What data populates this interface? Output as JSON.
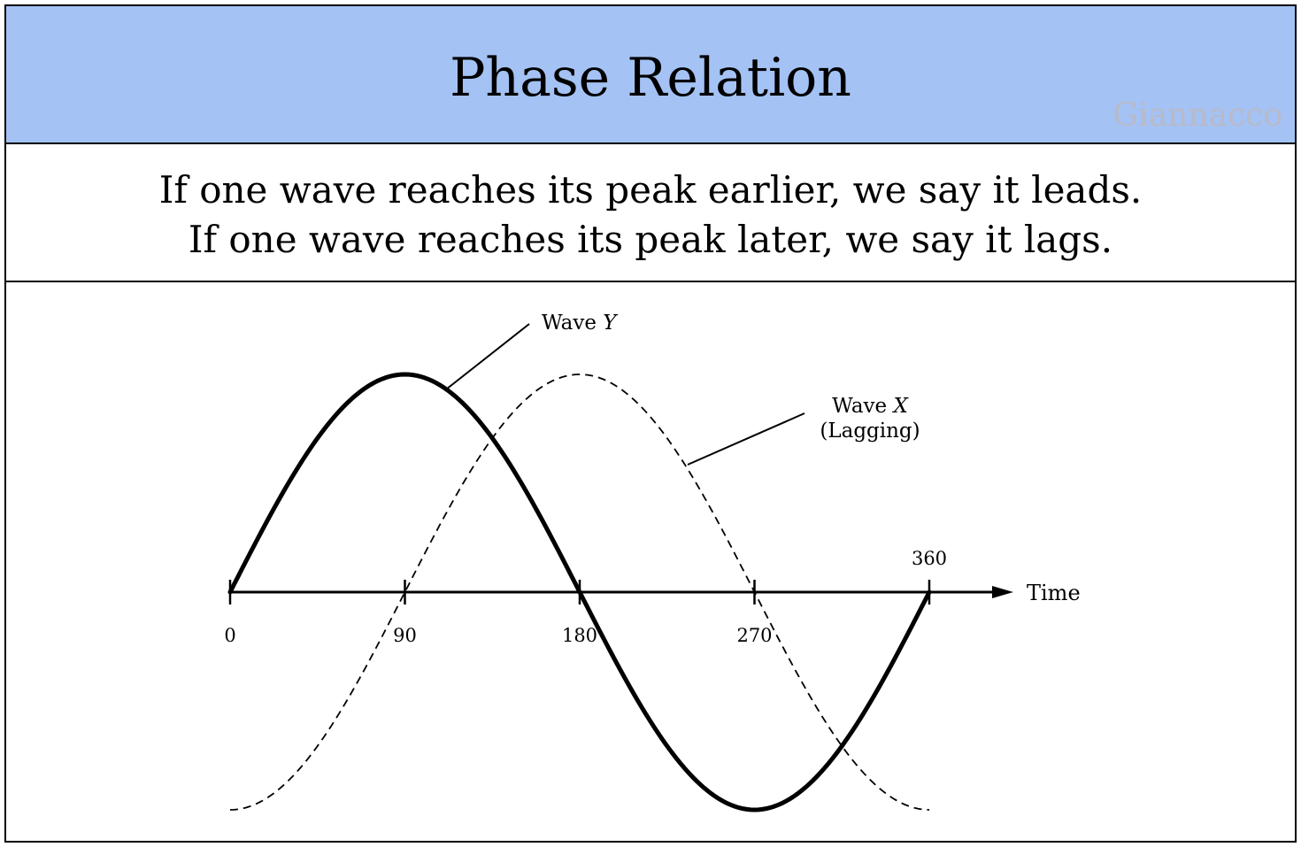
{
  "header": {
    "title": "Phase Relation",
    "watermark": "Giannacco",
    "background_color": "#a4c2f4"
  },
  "caption": {
    "line1": "If one wave reaches its peak earlier, we say it leads.",
    "line2": "If one wave reaches its peak later, we say it lags."
  },
  "diagram": {
    "axis": {
      "label": "Time",
      "ticks": [
        {
          "value": 0,
          "label": "0"
        },
        {
          "value": 90,
          "label": "90"
        },
        {
          "value": 180,
          "label": "180"
        },
        {
          "value": 270,
          "label": "270"
        },
        {
          "value": 360,
          "label": "360"
        }
      ]
    },
    "wave_y": {
      "label_prefix": "Wave ",
      "label_var": "Y",
      "style": "solid",
      "phase_shift_deg": 0
    },
    "wave_x": {
      "label_prefix": "Wave ",
      "label_var": "X",
      "note": "(Lagging)",
      "style": "dashed",
      "phase_shift_deg": 90
    }
  }
}
